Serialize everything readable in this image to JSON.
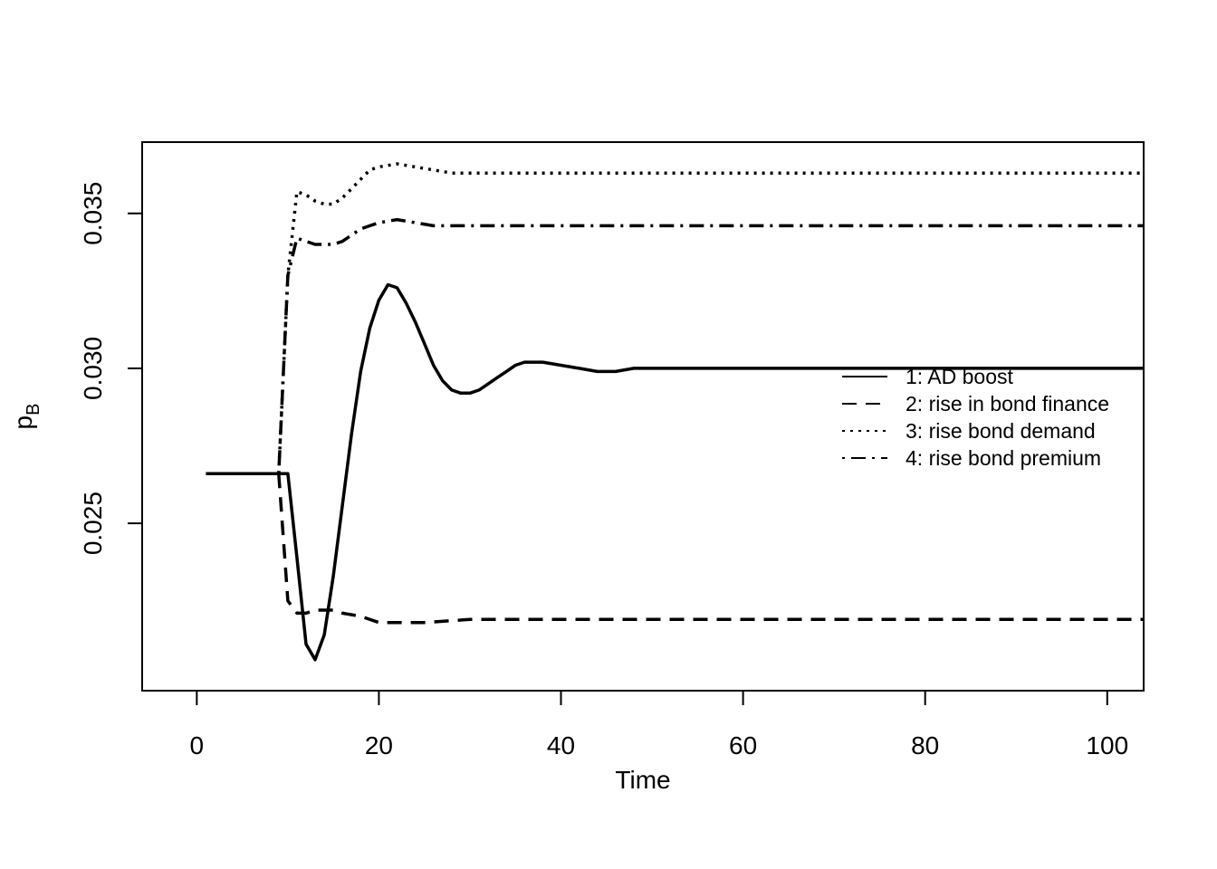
{
  "chart_data": {
    "type": "line",
    "title": "",
    "xlabel": "Time",
    "ylabel_main": "p",
    "ylabel_sub": "B",
    "xlim": [
      -6,
      104
    ],
    "ylim": [
      0.0196,
      0.0373
    ],
    "x_ticks": [
      0,
      20,
      40,
      60,
      80,
      100
    ],
    "x_tick_labels": [
      "0",
      "20",
      "40",
      "60",
      "80",
      "100"
    ],
    "y_ticks": [
      0.025,
      0.03,
      0.035
    ],
    "y_tick_labels": [
      "0.025",
      "0.030",
      "0.035"
    ],
    "grid": false,
    "legend_position": "right",
    "colors": {
      "line": "#000000",
      "background": "#ffffff"
    },
    "series": [
      {
        "name": "1: AD boost",
        "style": "solid",
        "points": [
          [
            1,
            0.0266
          ],
          [
            2,
            0.0266
          ],
          [
            4,
            0.0266
          ],
          [
            6,
            0.0266
          ],
          [
            8,
            0.0266
          ],
          [
            9,
            0.0266
          ],
          [
            10,
            0.0266
          ],
          [
            11,
            0.0239
          ],
          [
            12,
            0.0211
          ],
          [
            13,
            0.0206
          ],
          [
            14,
            0.0214
          ],
          [
            15,
            0.0233
          ],
          [
            16,
            0.0256
          ],
          [
            17,
            0.0279
          ],
          [
            18,
            0.0299
          ],
          [
            19,
            0.0313
          ],
          [
            20,
            0.0322
          ],
          [
            21,
            0.0327
          ],
          [
            22,
            0.0326
          ],
          [
            23,
            0.0321
          ],
          [
            24,
            0.0315
          ],
          [
            25,
            0.0308
          ],
          [
            26,
            0.0301
          ],
          [
            27,
            0.0296
          ],
          [
            28,
            0.0293
          ],
          [
            29,
            0.0292
          ],
          [
            30,
            0.0292
          ],
          [
            31,
            0.0293
          ],
          [
            32,
            0.0295
          ],
          [
            33,
            0.0297
          ],
          [
            34,
            0.0299
          ],
          [
            35,
            0.0301
          ],
          [
            36,
            0.0302
          ],
          [
            37,
            0.0302
          ],
          [
            38,
            0.0302
          ],
          [
            40,
            0.0301
          ],
          [
            42,
            0.03
          ],
          [
            44,
            0.0299
          ],
          [
            46,
            0.0299
          ],
          [
            48,
            0.03
          ],
          [
            50,
            0.03
          ],
          [
            55,
            0.03
          ],
          [
            60,
            0.03
          ],
          [
            70,
            0.03
          ],
          [
            80,
            0.03
          ],
          [
            90,
            0.03
          ],
          [
            100,
            0.03
          ],
          [
            104,
            0.03
          ]
        ]
      },
      {
        "name": "2: rise in bond finance",
        "style": "dashed",
        "points": [
          [
            9,
            0.0266
          ],
          [
            10,
            0.0225
          ],
          [
            11,
            0.0221
          ],
          [
            12,
            0.0221
          ],
          [
            13,
            0.0222
          ],
          [
            14,
            0.0222
          ],
          [
            15,
            0.0222
          ],
          [
            16,
            0.0221
          ],
          [
            18,
            0.022
          ],
          [
            20,
            0.0218
          ],
          [
            22,
            0.0218
          ],
          [
            25,
            0.0218
          ],
          [
            30,
            0.0219
          ],
          [
            40,
            0.0219
          ],
          [
            50,
            0.0219
          ],
          [
            60,
            0.0219
          ],
          [
            70,
            0.0219
          ],
          [
            80,
            0.0219
          ],
          [
            90,
            0.0219
          ],
          [
            100,
            0.0219
          ],
          [
            104,
            0.0219
          ]
        ]
      },
      {
        "name": "3: rise bond demand",
        "style": "dotted",
        "points": [
          [
            9,
            0.0266
          ],
          [
            10,
            0.033
          ],
          [
            11,
            0.0357
          ],
          [
            12,
            0.0356
          ],
          [
            13,
            0.0354
          ],
          [
            14,
            0.0353
          ],
          [
            15,
            0.0353
          ],
          [
            16,
            0.0355
          ],
          [
            17,
            0.0358
          ],
          [
            18,
            0.0361
          ],
          [
            19,
            0.0364
          ],
          [
            20,
            0.0365
          ],
          [
            22,
            0.0366
          ],
          [
            24,
            0.0365
          ],
          [
            26,
            0.0364
          ],
          [
            28,
            0.0363
          ],
          [
            30,
            0.0363
          ],
          [
            35,
            0.0363
          ],
          [
            40,
            0.0363
          ],
          [
            50,
            0.0363
          ],
          [
            60,
            0.0363
          ],
          [
            70,
            0.0363
          ],
          [
            80,
            0.0363
          ],
          [
            90,
            0.0363
          ],
          [
            100,
            0.0363
          ],
          [
            104,
            0.0363
          ]
        ]
      },
      {
        "name": "4: rise bond premium",
        "style": "dotdash",
        "points": [
          [
            9,
            0.0266
          ],
          [
            10,
            0.033
          ],
          [
            11,
            0.0342
          ],
          [
            12,
            0.0341
          ],
          [
            13,
            0.034
          ],
          [
            14,
            0.034
          ],
          [
            15,
            0.034
          ],
          [
            16,
            0.0341
          ],
          [
            17,
            0.0343
          ],
          [
            18,
            0.0345
          ],
          [
            19,
            0.0346
          ],
          [
            20,
            0.0347
          ],
          [
            22,
            0.0348
          ],
          [
            24,
            0.0347
          ],
          [
            26,
            0.0346
          ],
          [
            28,
            0.0346
          ],
          [
            30,
            0.0346
          ],
          [
            35,
            0.0346
          ],
          [
            40,
            0.0346
          ],
          [
            50,
            0.0346
          ],
          [
            60,
            0.0346
          ],
          [
            70,
            0.0346
          ],
          [
            80,
            0.0346
          ],
          [
            90,
            0.0346
          ],
          [
            100,
            0.0346
          ],
          [
            104,
            0.0346
          ]
        ]
      }
    ]
  }
}
